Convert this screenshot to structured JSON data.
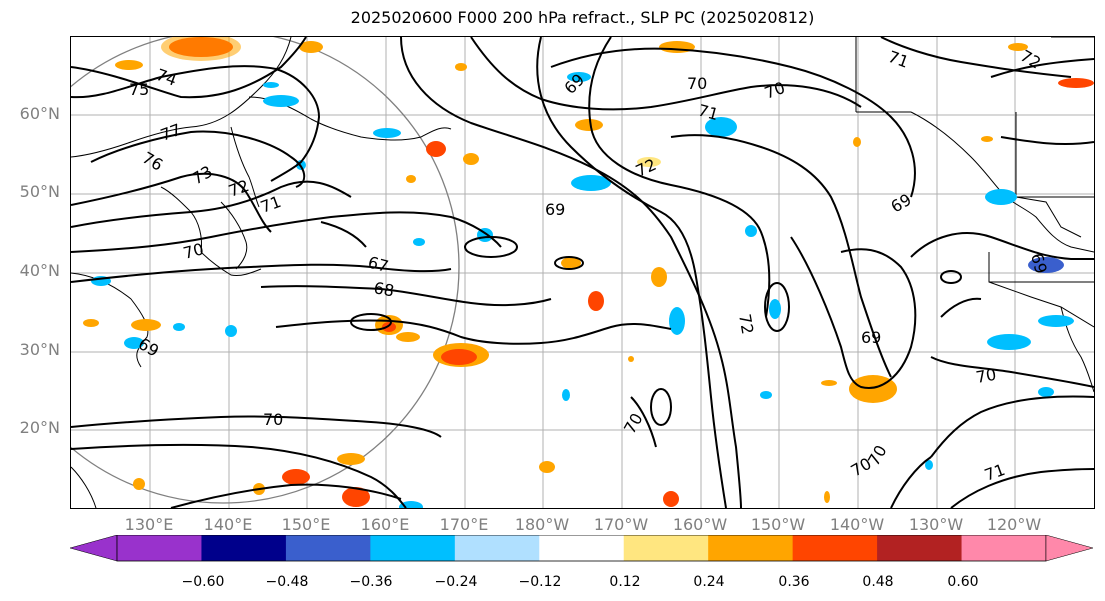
{
  "title": "2025020600 F000 200 hPa refract., SLP PC (2025020812)",
  "lat_labels": [
    "60°N",
    "50°N",
    "40°N",
    "30°N",
    "20°N"
  ],
  "lon_labels": [
    "130°E",
    "140°E",
    "150°E",
    "160°E",
    "170°E",
    "180°W",
    "170°W",
    "160°W",
    "150°W",
    "140°W",
    "130°W",
    "120°W"
  ],
  "contour_labels": [
    "75",
    "74",
    "77",
    "76",
    "73",
    "72",
    "71",
    "70",
    "69",
    "67",
    "68",
    "69",
    "70",
    "71",
    "72",
    "70",
    "69",
    "69",
    "70",
    "72",
    "69",
    "70",
    "70",
    "70",
    "71",
    "70",
    "71",
    "72",
    "69"
  ],
  "colorbar": {
    "ticks": [
      "−0.60",
      "−0.48",
      "−0.36",
      "−0.24",
      "−0.12",
      "0.12",
      "0.24",
      "0.36",
      "0.48",
      "0.60"
    ],
    "colors": [
      "#9932cc",
      "#00008b",
      "#3a5fcd",
      "#00bfff",
      "#b0e0ff",
      "#ffffff",
      "#ffe680",
      "#ffa500",
      "#ff4500",
      "#b22222",
      "#ff88aa",
      "#ff88aa"
    ]
  },
  "legend_shading": {
    "low": "#00bfff",
    "light_low": "#b0e0ff",
    "high": "#ffa500",
    "light_high": "#ffe680",
    "very_high": "#ff4500"
  }
}
